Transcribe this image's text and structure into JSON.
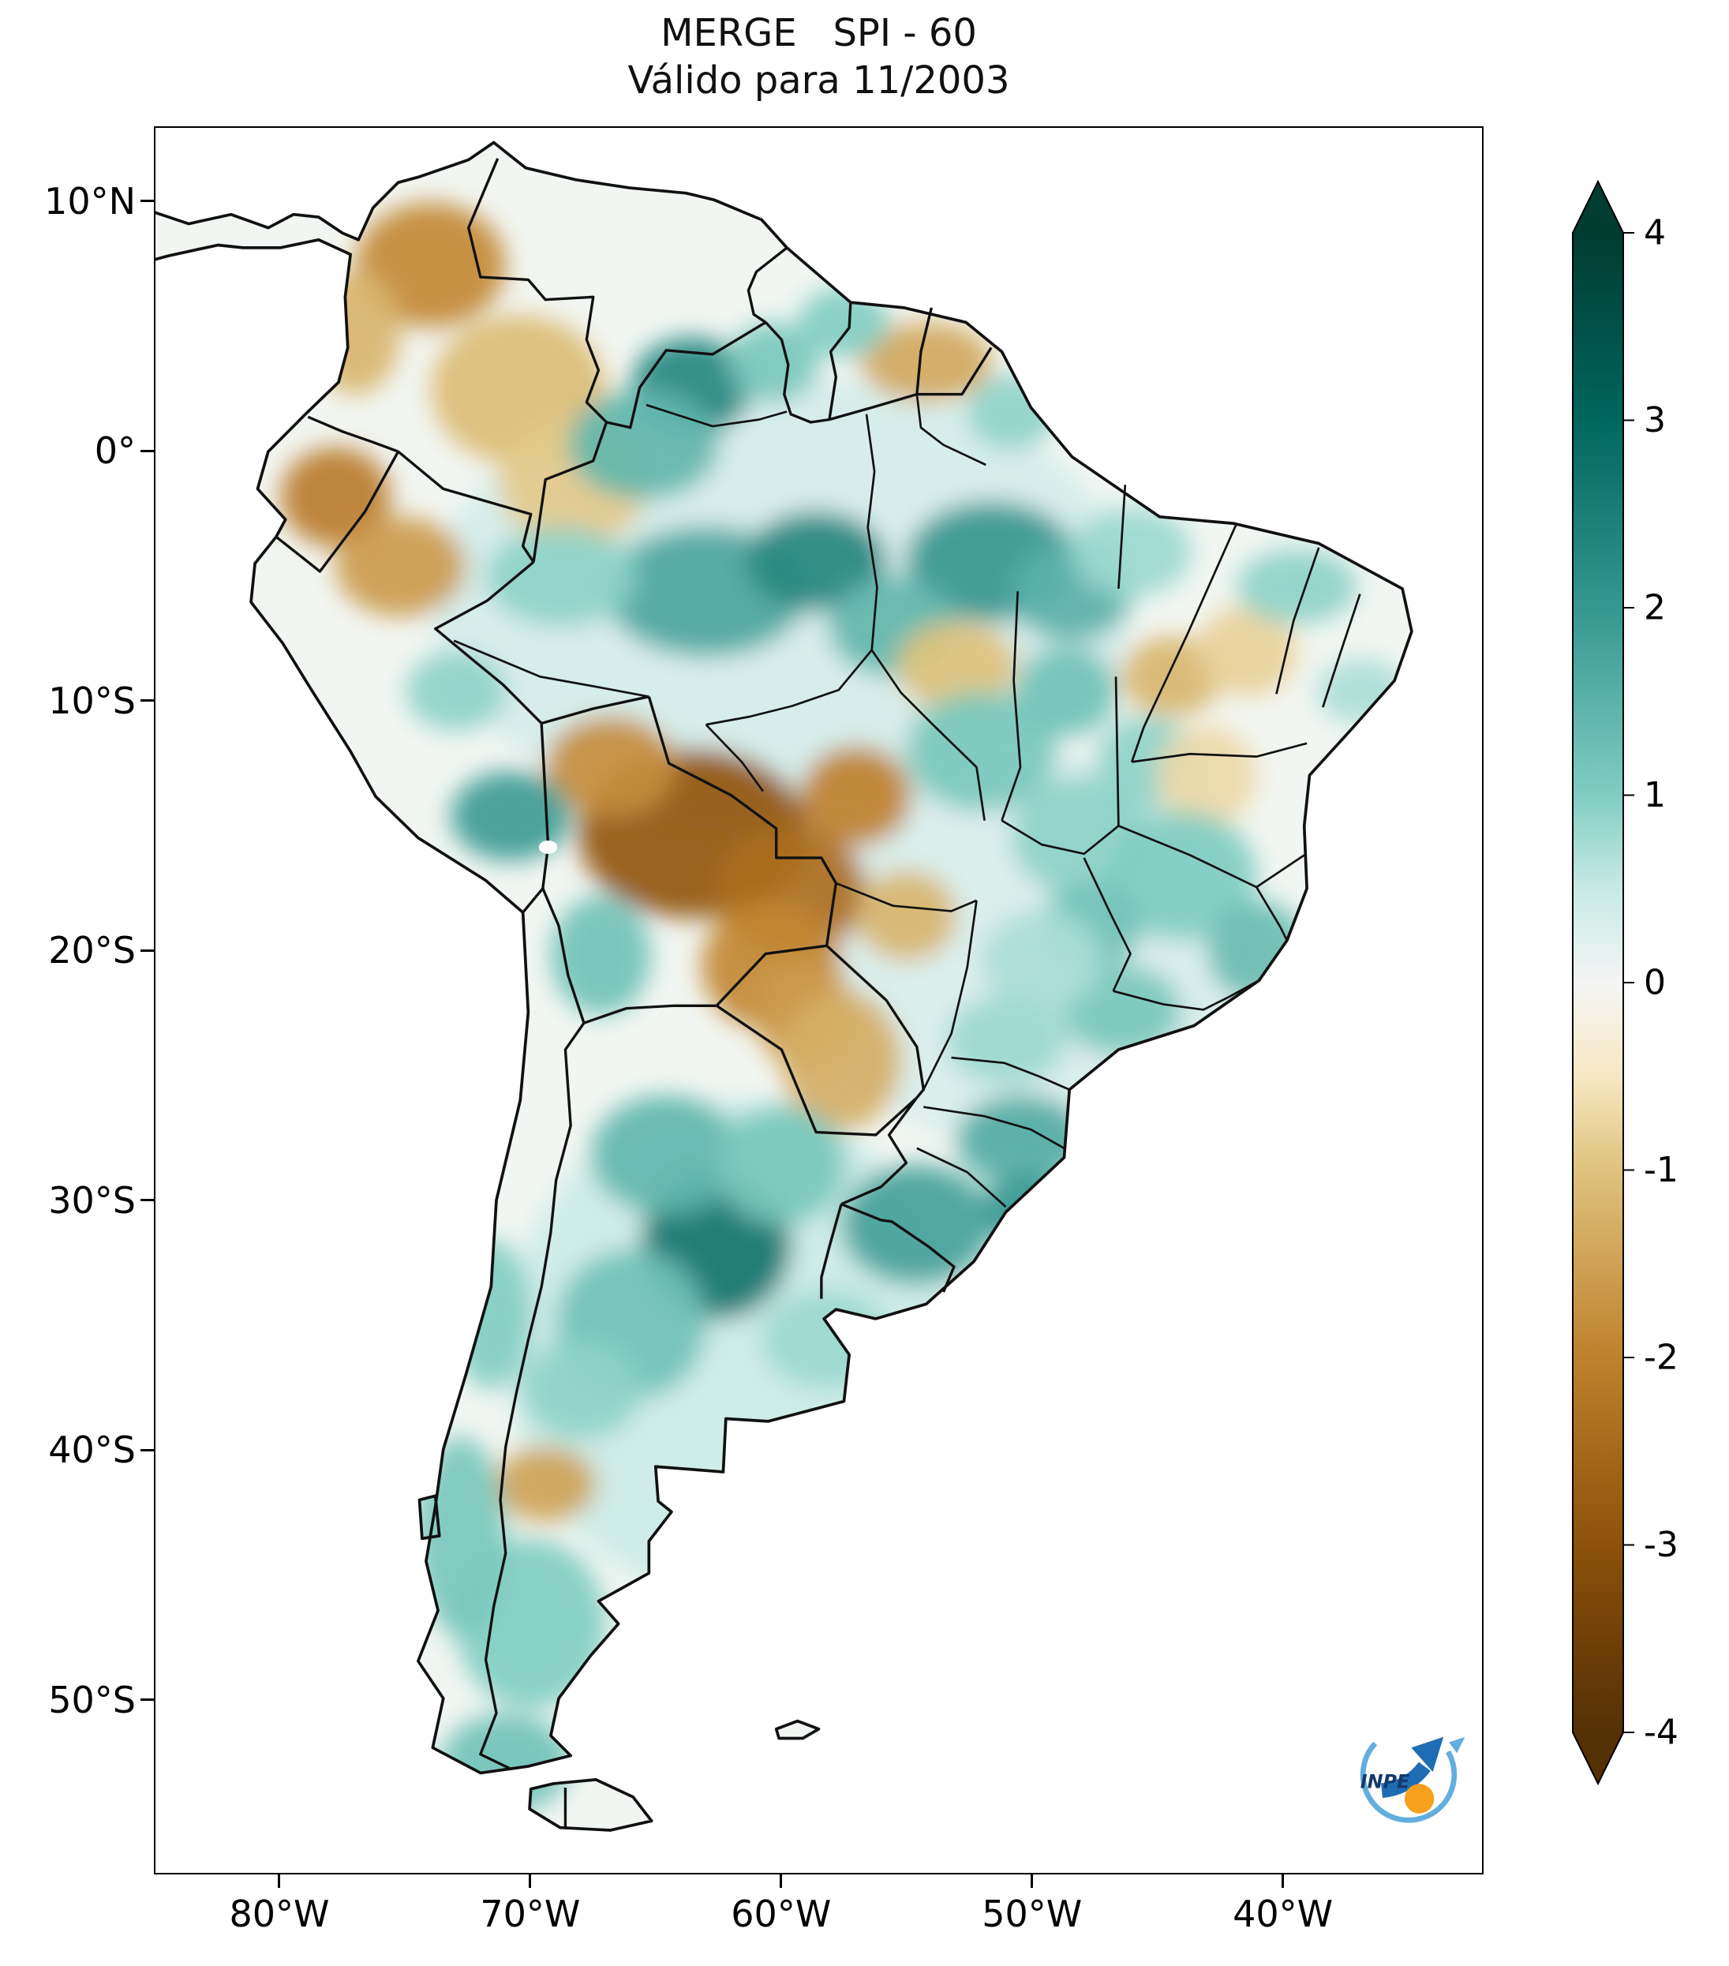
{
  "title": {
    "line1": "MERGE   SPI - 60",
    "line2": "Válido para 11/2003"
  },
  "logo": {
    "label": "INPE"
  },
  "chart_data": {
    "type": "heatmap",
    "title": "MERGE   SPI - 60",
    "subtitle": "Válido para 11/2003",
    "variable": "SPI-60 (Standardized Precipitation Index)",
    "region": "South America",
    "colormap": "BrBG (brown = dry / negative, teal-green = wet / positive)",
    "value_range": [
      -4,
      4
    ],
    "colorbar_ticks": [
      4,
      3,
      2,
      1,
      0,
      -1,
      -2,
      -3,
      -4
    ],
    "colormap_stops": [
      [
        -4,
        "#543005"
      ],
      [
        -3,
        "#8c510a"
      ],
      [
        -2,
        "#bf812d"
      ],
      [
        -1,
        "#dfc27d"
      ],
      [
        -0.5,
        "#f6e8c3"
      ],
      [
        0,
        "#f5f5f5"
      ],
      [
        0.5,
        "#c7eae5"
      ],
      [
        1,
        "#80cdc1"
      ],
      [
        2,
        "#35978f"
      ],
      [
        3,
        "#01665e"
      ],
      [
        4,
        "#003c30"
      ]
    ],
    "x_axis": {
      "ticks": [
        "80°W",
        "70°W",
        "60°W",
        "50°W",
        "40°W"
      ],
      "tick_lons": [
        -80,
        -70,
        -60,
        -50,
        -40
      ],
      "range_lon": [
        -85,
        -32
      ]
    },
    "y_axis": {
      "ticks": [
        "10°N",
        "0°",
        "10°S",
        "20°S",
        "30°S",
        "40°S",
        "50°S"
      ],
      "tick_lats": [
        10,
        0,
        -10,
        -20,
        -30,
        -40,
        -50
      ],
      "range_lat": [
        13,
        -57
      ]
    },
    "anomalies": [
      {
        "lon": -60,
        "lat": -6,
        "rx": 14,
        "ry": 9,
        "spi": 0.35
      },
      {
        "lon": -62,
        "lat": -36,
        "rx": 9,
        "ry": 10,
        "spi": 0.45
      },
      {
        "lon": -50,
        "lat": -20,
        "rx": 9,
        "ry": 8,
        "spi": 0.3
      },
      {
        "lon": -74,
        "lat": 7.5,
        "rx": 3,
        "ry": 2.5,
        "spi": -1.9,
        "region": "N Colombia / NW Venezuela"
      },
      {
        "lon": -77,
        "lat": 4.8,
        "rx": 1.8,
        "ry": 2.5,
        "spi": -1.2
      },
      {
        "lon": -70.5,
        "lat": 2.5,
        "rx": 3.5,
        "ry": 3,
        "spi": -1.1,
        "region": "E Colombia"
      },
      {
        "lon": -77.8,
        "lat": -1.8,
        "rx": 2.2,
        "ry": 2,
        "spi": -2.1,
        "region": "Ecuador / N Peru"
      },
      {
        "lon": -75.2,
        "lat": -4.6,
        "rx": 2.6,
        "ry": 2,
        "spi": -1.6
      },
      {
        "lon": -68.3,
        "lat": -1.2,
        "rx": 3,
        "ry": 2.6,
        "spi": -0.9
      },
      {
        "lon": -63.6,
        "lat": 2.6,
        "rx": 2.4,
        "ry": 2,
        "spi": 2.3,
        "region": "upper Rio Negro"
      },
      {
        "lon": -65.5,
        "lat": 0.3,
        "rx": 3,
        "ry": 2.2,
        "spi": 1.4
      },
      {
        "lon": -60.3,
        "lat": 3.6,
        "rx": 1.8,
        "ry": 1.6,
        "spi": 1.1
      },
      {
        "lon": -54.2,
        "lat": 3.6,
        "rx": 2.6,
        "ry": 1.6,
        "spi": -1.4,
        "region": "Suriname-Brazil border"
      },
      {
        "lon": -50.8,
        "lat": 1.6,
        "rx": 1.8,
        "ry": 1.5,
        "spi": 0.9
      },
      {
        "lon": -57.5,
        "lat": 5.2,
        "rx": 1.8,
        "ry": 1.4,
        "spi": 1.0,
        "region": "Guianas"
      },
      {
        "lon": -63,
        "lat": -5.6,
        "rx": 4,
        "ry": 2.6,
        "spi": 1.7,
        "region": "central Amazonas"
      },
      {
        "lon": -58.6,
        "lat": -4.4,
        "rx": 2.8,
        "ry": 2,
        "spi": 2.3
      },
      {
        "lon": -51.6,
        "lat": -4.4,
        "rx": 3.4,
        "ry": 2.4,
        "spi": 2.0,
        "region": "E Pará"
      },
      {
        "lon": -48.4,
        "lat": -5.6,
        "rx": 2.4,
        "ry": 2,
        "spi": 1.5
      },
      {
        "lon": -46,
        "lat": -4,
        "rx": 2.4,
        "ry": 1.8,
        "spi": 0.8
      },
      {
        "lon": -55.5,
        "lat": -7,
        "rx": 2.6,
        "ry": 2,
        "spi": 1.4
      },
      {
        "lon": -68.8,
        "lat": -5,
        "rx": 3,
        "ry": 2,
        "spi": 0.9
      },
      {
        "lon": -73,
        "lat": -9.6,
        "rx": 2,
        "ry": 1.6,
        "spi": 0.9
      },
      {
        "lon": -44.4,
        "lat": -9,
        "rx": 2,
        "ry": 1.6,
        "spi": -1.2,
        "region": "S Piauí"
      },
      {
        "lon": -41.4,
        "lat": -8,
        "rx": 2,
        "ry": 1.8,
        "spi": -0.8
      },
      {
        "lon": -39.4,
        "lat": -5.4,
        "rx": 2.4,
        "ry": 1.5,
        "spi": 0.9,
        "region": "Ceará"
      },
      {
        "lon": -36.8,
        "lat": -9.6,
        "rx": 1.8,
        "ry": 1.3,
        "spi": 0.7
      },
      {
        "lon": -53,
        "lat": -8.6,
        "rx": 2.4,
        "ry": 1.8,
        "spi": -1.0,
        "region": "S Pará"
      },
      {
        "lon": -57,
        "lat": -13.8,
        "rx": 2.2,
        "ry": 2,
        "spi": -2.0
      },
      {
        "lon": -63.5,
        "lat": -15.3,
        "rx": 4.6,
        "ry": 3.4,
        "spi": -2.9,
        "region": "Bolivia / Rondônia drought core"
      },
      {
        "lon": -66.8,
        "lat": -12.6,
        "rx": 2.6,
        "ry": 2,
        "spi": -1.8
      },
      {
        "lon": -59.6,
        "lat": -17.6,
        "rx": 3,
        "ry": 2.6,
        "spi": -2.4,
        "region": "E Bolivia / Pantanal"
      },
      {
        "lon": -60.4,
        "lat": -20.6,
        "rx": 2.8,
        "ry": 2.6,
        "spi": -1.9,
        "region": "Chaco"
      },
      {
        "lon": -59,
        "lat": -22.6,
        "rx": 2,
        "ry": 2.2,
        "spi": -1.6
      },
      {
        "lon": -57.6,
        "lat": -24.4,
        "rx": 2.4,
        "ry": 2.8,
        "spi": -1.3,
        "region": "W Paraguay"
      },
      {
        "lon": -55,
        "lat": -18.6,
        "rx": 2,
        "ry": 1.8,
        "spi": -1.2
      },
      {
        "lon": -70.8,
        "lat": -14.6,
        "rx": 2.4,
        "ry": 1.8,
        "spi": 1.9,
        "region": "S Peru"
      },
      {
        "lon": -67.2,
        "lat": -20.2,
        "rx": 2,
        "ry": 2.4,
        "spi": 1.2,
        "region": "Altiplano"
      },
      {
        "lon": -52,
        "lat": -12,
        "rx": 3,
        "ry": 2.4,
        "spi": 1.1
      },
      {
        "lon": -48,
        "lat": -15.4,
        "rx": 2.8,
        "ry": 2.4,
        "spi": 0.9
      },
      {
        "lon": -45.4,
        "lat": -12.4,
        "rx": 2,
        "ry": 1.8,
        "spi": 0.9,
        "region": "W Bahia"
      },
      {
        "lon": -43,
        "lat": -13,
        "rx": 2,
        "ry": 2,
        "spi": -0.7,
        "region": "central Bahia"
      },
      {
        "lon": -48.6,
        "lat": -9.6,
        "rx": 2,
        "ry": 1.8,
        "spi": 1.2,
        "region": "Tocantins"
      },
      {
        "lon": -44,
        "lat": -17,
        "rx": 3,
        "ry": 2.6,
        "spi": 1.0,
        "region": "Minas Gerais"
      },
      {
        "lon": -47.6,
        "lat": -19,
        "rx": 2,
        "ry": 1.8,
        "spi": 1.2
      },
      {
        "lon": -41,
        "lat": -20,
        "rx": 2,
        "ry": 2,
        "spi": 1.3
      },
      {
        "lon": -46.4,
        "lat": -22.4,
        "rx": 2.4,
        "ry": 1.8,
        "spi": 1.1
      },
      {
        "lon": -49.6,
        "lat": -20.4,
        "rx": 2.4,
        "ry": 2,
        "spi": 0.7
      },
      {
        "lon": -51,
        "lat": -23.6,
        "rx": 2.4,
        "ry": 1.8,
        "spi": 0.8
      },
      {
        "lon": -50.4,
        "lat": -27.6,
        "rx": 2.6,
        "ry": 1.8,
        "spi": 1.6,
        "region": "Santa Catarina"
      },
      {
        "lon": -50.2,
        "lat": -30.4,
        "rx": 1.8,
        "ry": 1.4,
        "spi": 2.0,
        "region": "coastal Rio Grande do Sul"
      },
      {
        "lon": -54.6,
        "lat": -31,
        "rx": 3,
        "ry": 2.4,
        "spi": 1.8,
        "region": "RS / Uruguay"
      },
      {
        "lon": -62.6,
        "lat": -31.8,
        "rx": 3,
        "ry": 3,
        "spi": 2.7,
        "region": "central Argentina (Córdoba)"
      },
      {
        "lon": -64.6,
        "lat": -28.2,
        "rx": 3,
        "ry": 2.4,
        "spi": 1.4
      },
      {
        "lon": -60,
        "lat": -28.6,
        "rx": 2.6,
        "ry": 2.4,
        "spi": 1.1
      },
      {
        "lon": -66,
        "lat": -35,
        "rx": 3,
        "ry": 3,
        "spi": 1.2
      },
      {
        "lon": -58.2,
        "lat": -35.6,
        "rx": 2.6,
        "ry": 2,
        "spi": 0.8,
        "region": "Buenos Aires"
      },
      {
        "lon": -68,
        "lat": -37.6,
        "rx": 2.4,
        "ry": 2,
        "spi": 0.9
      },
      {
        "lon": -69.4,
        "lat": -41.4,
        "rx": 2,
        "ry": 1.5,
        "spi": -1.5,
        "region": "N Patagonia"
      },
      {
        "lon": -70,
        "lat": -47,
        "rx": 3,
        "ry": 3.4,
        "spi": 1.0,
        "region": "S Patagonia"
      },
      {
        "lon": -71,
        "lat": -52.6,
        "rx": 2.6,
        "ry": 2,
        "spi": 1.2
      },
      {
        "lon": -71.6,
        "lat": -34.6,
        "rx": 1.6,
        "ry": 3,
        "spi": 1.0,
        "region": "central Chile"
      },
      {
        "lon": -72.8,
        "lat": -43.5,
        "rx": 1.8,
        "ry": 4,
        "spi": 1.1,
        "region": "S Chile"
      }
    ]
  }
}
